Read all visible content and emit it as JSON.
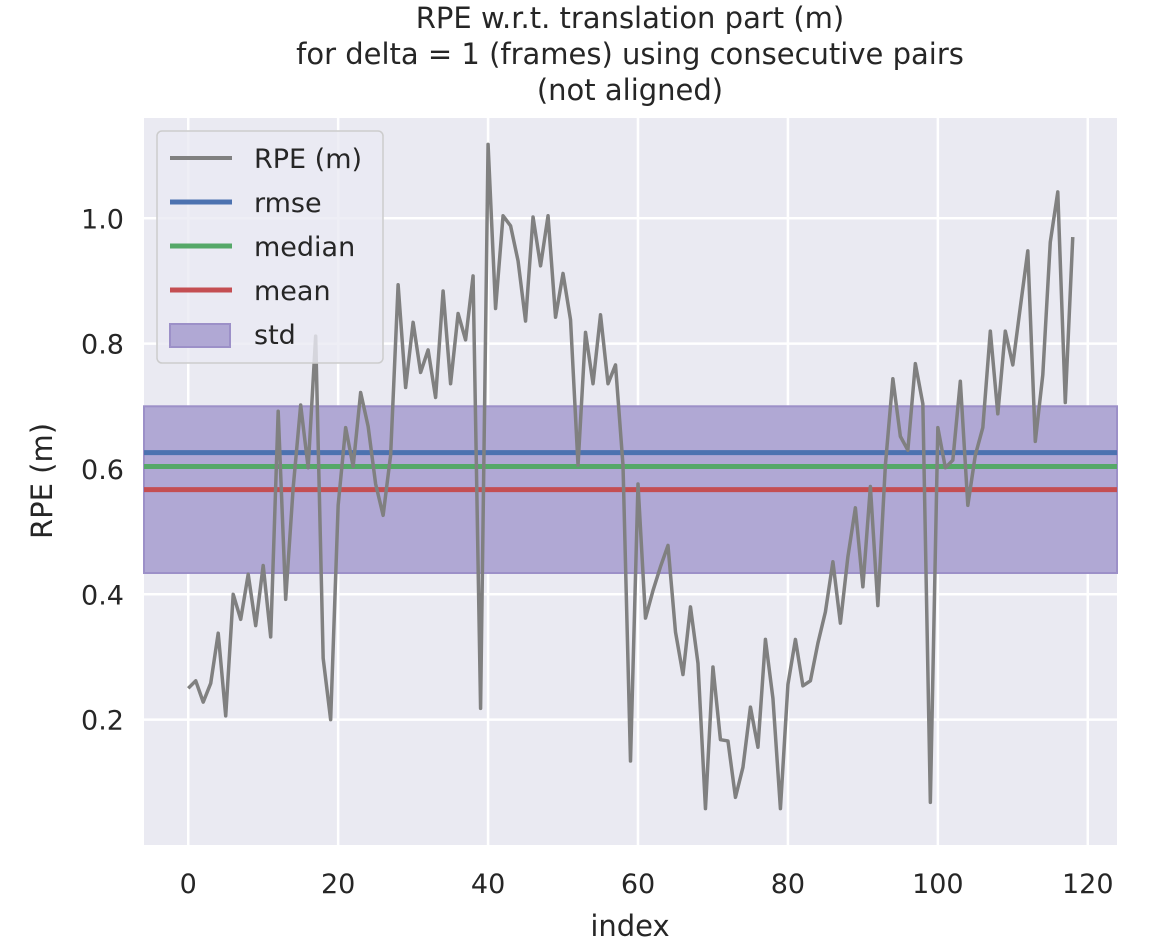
{
  "chart_data": {
    "type": "line",
    "title": "RPE w.r.t. translation part (m)",
    "subtitle_lines": [
      "for delta = 1 (frames) using consecutive pairs",
      "(not aligned)"
    ],
    "xlabel": "index",
    "ylabel": "RPE (m)",
    "xlim": [
      -5.9,
      123.9
    ],
    "ylim": [
      0.0,
      1.16
    ],
    "x_ticks": [
      0,
      20,
      40,
      60,
      80,
      100,
      120
    ],
    "y_ticks": [
      0.2,
      0.4,
      0.6,
      0.8,
      1.0
    ],
    "x_tick_labels": [
      "0",
      "20",
      "40",
      "60",
      "80",
      "100",
      "120"
    ],
    "y_tick_labels": [
      "0.2",
      "0.4",
      "0.6",
      "0.8",
      "1.0"
    ],
    "grid": true,
    "legend_position": "top-left",
    "series": [
      {
        "name": "RPE (m)",
        "color": "#808080",
        "x": [
          0,
          1,
          2,
          3,
          4,
          5,
          6,
          7,
          8,
          9,
          10,
          11,
          12,
          13,
          14,
          15,
          16,
          17,
          18,
          19,
          20,
          21,
          22,
          23,
          24,
          25,
          26,
          27,
          28,
          29,
          30,
          31,
          32,
          33,
          34,
          35,
          36,
          37,
          38,
          39,
          40,
          41,
          42,
          43,
          44,
          45,
          46,
          47,
          48,
          49,
          50,
          51,
          52,
          53,
          54,
          55,
          56,
          57,
          58,
          59,
          60,
          61,
          62,
          63,
          64,
          65,
          66,
          67,
          68,
          69,
          70,
          71,
          72,
          73,
          74,
          75,
          76,
          77,
          78,
          79,
          80,
          81,
          82,
          83,
          84,
          85,
          86,
          87,
          88,
          89,
          90,
          91,
          92,
          93,
          94,
          95,
          96,
          97,
          98,
          99,
          100,
          101,
          102,
          103,
          104,
          105,
          106,
          107,
          108,
          109,
          110,
          111,
          112,
          113,
          114,
          115,
          116,
          117,
          118
        ],
        "values": [
          0.25,
          0.262,
          0.228,
          0.258,
          0.338,
          0.206,
          0.4,
          0.36,
          0.432,
          0.35,
          0.446,
          0.332,
          0.692,
          0.392,
          0.57,
          0.702,
          0.602,
          0.812,
          0.298,
          0.2,
          0.542,
          0.666,
          0.604,
          0.722,
          0.668,
          0.576,
          0.526,
          0.622,
          0.894,
          0.73,
          0.834,
          0.754,
          0.79,
          0.714,
          0.884,
          0.736,
          0.848,
          0.806,
          0.908,
          0.218,
          1.118,
          0.856,
          1.004,
          0.988,
          0.932,
          0.836,
          1.002,
          0.924,
          1.004,
          0.842,
          0.912,
          0.838,
          0.606,
          0.818,
          0.736,
          0.846,
          0.736,
          0.766,
          0.606,
          0.134,
          0.576,
          0.362,
          0.406,
          0.444,
          0.478,
          0.34,
          0.272,
          0.38,
          0.29,
          0.058,
          0.284,
          0.168,
          0.166,
          0.076,
          0.124,
          0.22,
          0.156,
          0.328,
          0.234,
          0.058,
          0.256,
          0.328,
          0.254,
          0.262,
          0.322,
          0.372,
          0.452,
          0.354,
          0.46,
          0.538,
          0.412,
          0.572,
          0.382,
          0.606,
          0.744,
          0.652,
          0.63,
          0.768,
          0.704,
          0.068,
          0.666,
          0.602,
          0.614,
          0.74,
          0.542,
          0.622,
          0.666,
          0.82,
          0.688,
          0.82,
          0.766,
          0.858,
          0.948,
          0.644,
          0.75,
          0.962,
          1.042,
          0.706,
          0.97
        ]
      },
      {
        "name": "rmse",
        "color": "#4c72b0",
        "value": 0.626
      },
      {
        "name": "median",
        "color": "#55a868",
        "value": 0.604
      },
      {
        "name": "mean",
        "color": "#c44e52",
        "value": 0.567
      },
      {
        "name": "std",
        "color": "#8172b3",
        "range": [
          0.434,
          0.7
        ]
      }
    ],
    "colors": {
      "figure_background": "#ffffff",
      "axes_background": "#eaeaf2",
      "grid": "#ffffff",
      "std_fill": "#b0a8d4",
      "std_edge": "#9c90c8"
    }
  }
}
